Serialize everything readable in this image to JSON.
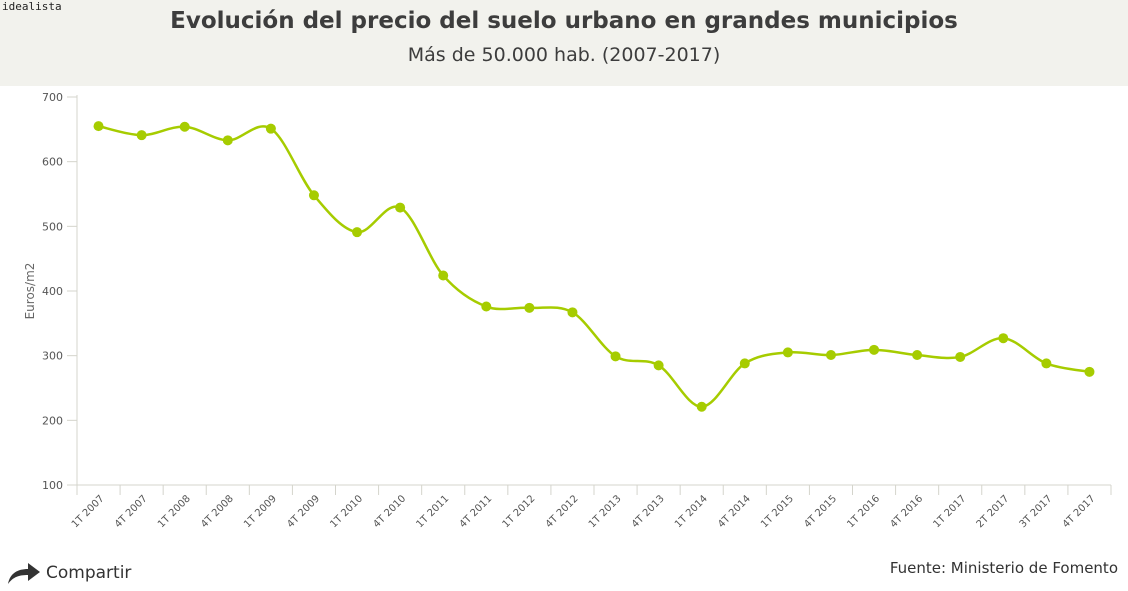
{
  "brand": "idealista",
  "header": {
    "title": "Evolución del precio del suelo urbano en grandes municipios",
    "subtitle": "Más de 50.000 hab. (2007-2017)"
  },
  "footer": {
    "share_label": "Compartir",
    "share_icon": "share-arrow-icon",
    "source": "Fuente: Ministerio de Fomento"
  },
  "chart_data": {
    "type": "line",
    "title": "Evolución del precio del suelo urbano en grandes municipios",
    "subtitle": "Más de 50.000 hab. (2007-2017)",
    "xlabel": "",
    "ylabel": "Euros/m2",
    "ylim": [
      100,
      700
    ],
    "yticks": [
      100,
      200,
      300,
      400,
      500,
      600,
      700
    ],
    "grid": false,
    "line_color": "#a6cc00",
    "categories": [
      "1T 2007",
      "4T 2007",
      "1T 2008",
      "4T 2008",
      "1T 2009",
      "4T 2009",
      "1T 2010",
      "4T 2010",
      "1T 2011",
      "4T 2011",
      "1T 2012",
      "4T 2012",
      "1T 2013",
      "4T 2013",
      "1T 2014",
      "4T 2014",
      "1T 2015",
      "4T 2015",
      "1T 2016",
      "4T 2016",
      "1T 2017",
      "2T 2017",
      "3T 2017",
      "4T 2017"
    ],
    "values": [
      655,
      641,
      654,
      633,
      651,
      548,
      491,
      529,
      424,
      376,
      374,
      367,
      299,
      285,
      221,
      288,
      305,
      301,
      309,
      301,
      298,
      327,
      288,
      275
    ]
  }
}
